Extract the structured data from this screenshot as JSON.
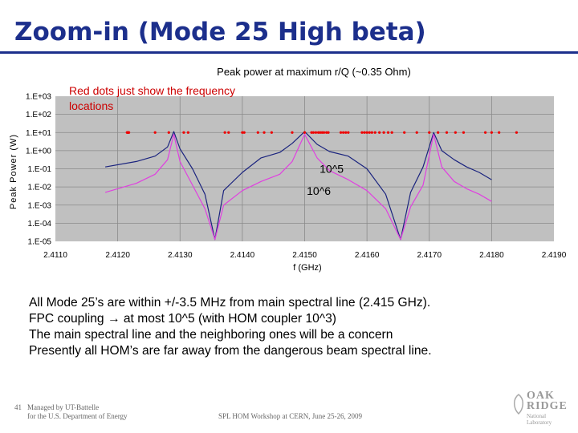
{
  "slide": {
    "title": "Zoom-in (Mode 25 High beta)",
    "bullets": [
      "All Mode 25’s are within +/-3.5 MHz from main spectral line (2.415 GHz).",
      "FPC coupling → at most 10^5 (with HOM coupler 10^3)",
      "The main spectral line and the neighboring ones will be a concern",
      "Presently all HOM’s are far away from the dangerous beam spectral line."
    ],
    "footer": {
      "page": "41",
      "managed_line1": "Managed by UT-Battelle",
      "managed_line2": "for the U.S. Department of Energy",
      "workshop": "SPL HOM Workshop at CERN, June 25-26, 2009"
    },
    "logo": {
      "line1": "OAK",
      "line2": "RIDGE",
      "line3": "National Laboratory"
    }
  },
  "chart_data": {
    "type": "line",
    "title": "Peak power at maximum r/Q (~0.35 Ohm)",
    "xlabel": "f (GHz)",
    "ylabel": "Peak Power (W)",
    "xlim": [
      2.411,
      2.419
    ],
    "ylim": [
      -5,
      3
    ],
    "log_y": true,
    "x_ticks": [
      "2.4110",
      "2.4120",
      "2.4130",
      "2.4140",
      "2.4150",
      "2.4160",
      "2.4170",
      "2.4180",
      "2.4190"
    ],
    "y_ticks": [
      "1.E-05",
      "1.E-04",
      "1.E-03",
      "1.E-02",
      "1.E-01",
      "1.E+00",
      "1.E+01",
      "1.E+02",
      "1.E+03"
    ],
    "grid": true,
    "annotations": [
      {
        "text": "Red dots just show the frequency",
        "color": "#cc0000"
      },
      {
        "text": "locations",
        "color": "#cc0000"
      },
      {
        "text": "10^5",
        "x": 2.41524,
        "y": 0.1
      },
      {
        "text": "10^6",
        "x": 2.41524,
        "y": 0.01
      }
    ],
    "series": [
      {
        "color": "#1a237e",
        "peaks": [
          2.4129,
          2.415,
          2.41707
        ],
        "dips": [
          2.41356,
          2.41654
        ],
        "x": [
          2.4118,
          2.4123,
          2.4126,
          2.4128,
          2.4129,
          2.413,
          2.4132,
          2.4134,
          2.41356,
          2.4137,
          2.414,
          2.4143,
          2.4146,
          2.4148,
          2.415,
          2.4152,
          2.4154,
          2.4157,
          2.416,
          2.4163,
          2.41654,
          2.4167,
          2.4169,
          2.41707,
          2.4172,
          2.4174,
          2.4176,
          2.4178,
          2.418
        ],
        "y": [
          -0.9,
          -0.6,
          -0.3,
          0.2,
          1.05,
          0.1,
          -1.0,
          -2.4,
          -4.9,
          -2.2,
          -1.2,
          -0.4,
          -0.1,
          0.4,
          1.05,
          0.35,
          -0.05,
          -0.3,
          -1.0,
          -2.4,
          -4.9,
          -2.3,
          -0.9,
          1.0,
          0.0,
          -0.5,
          -0.9,
          -1.2,
          -1.6
        ]
      },
      {
        "color": "#e040e0",
        "peaks": [
          2.4129,
          2.415,
          2.41707
        ],
        "dips": [
          2.41356,
          2.41654
        ],
        "x": [
          2.4118,
          2.4123,
          2.4126,
          2.4128,
          2.4129,
          2.413,
          2.4132,
          2.4134,
          2.41356,
          2.4137,
          2.414,
          2.4143,
          2.4146,
          2.4148,
          2.415,
          2.4152,
          2.4154,
          2.4157,
          2.416,
          2.4163,
          2.41654,
          2.4167,
          2.4169,
          2.41707,
          2.4172,
          2.4174,
          2.4176,
          2.4178,
          2.418
        ],
        "y": [
          -2.3,
          -1.8,
          -1.3,
          -0.5,
          0.9,
          -0.6,
          -1.9,
          -3.2,
          -4.9,
          -3.0,
          -2.2,
          -1.7,
          -1.3,
          -0.6,
          0.9,
          -0.4,
          -1.1,
          -1.6,
          -2.2,
          -3.2,
          -4.9,
          -3.1,
          -1.9,
          0.9,
          -0.9,
          -1.7,
          -2.1,
          -2.4,
          -2.8
        ]
      }
    ],
    "red_dots": {
      "y": 1.0,
      "x": [
        2.41215,
        2.41216,
        2.41217,
        2.41218,
        2.4126,
        2.41282,
        2.41306,
        2.41313,
        2.41372,
        2.41378,
        2.414,
        2.41403,
        2.41425,
        2.41435,
        2.41447,
        2.4148,
        2.415,
        2.41511,
        2.41514,
        2.41518,
        2.41522,
        2.41525,
        2.41528,
        2.41531,
        2.41535,
        2.41538,
        2.41558,
        2.41562,
        2.41566,
        2.4157,
        2.41592,
        2.41596,
        2.416,
        2.41604,
        2.41608,
        2.41613,
        2.4162,
        2.41627,
        2.41634,
        2.4164,
        2.4166,
        2.4168,
        2.417,
        2.41714,
        2.41728,
        2.41742,
        2.41755,
        2.4179,
        2.418,
        2.41812,
        2.4184
      ]
    }
  }
}
